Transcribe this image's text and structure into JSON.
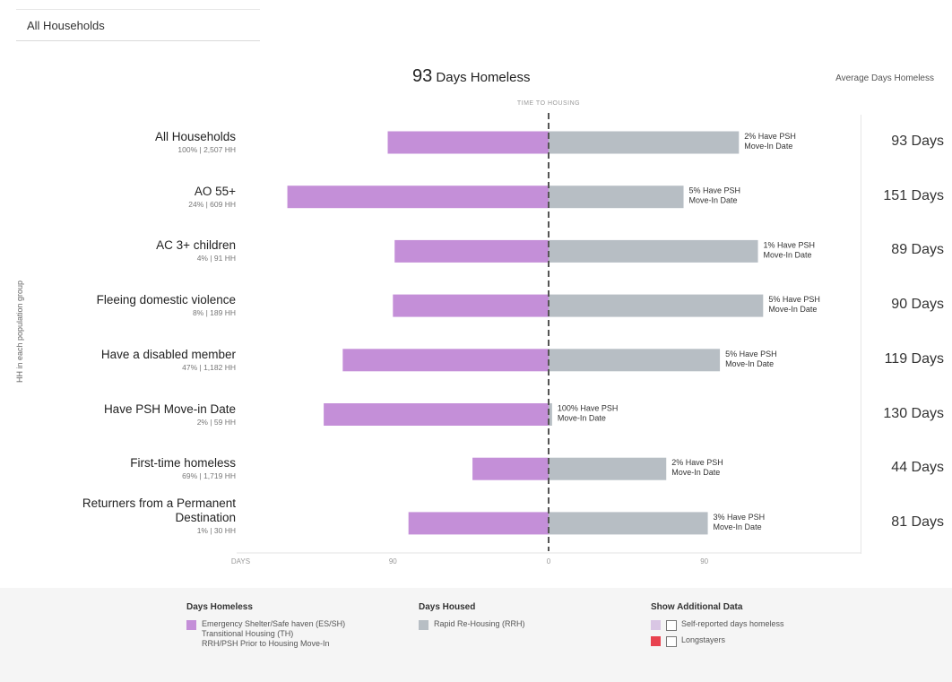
{
  "filter": {
    "value": "All Households"
  },
  "headline": {
    "number": "93",
    "text": "Days Homeless"
  },
  "avg_title": "Average Days Homeless",
  "zero_caption": "TIME TO HOUSING",
  "y_axis_title": "HH in each population group",
  "colors": {
    "homeless": "#c48fd8",
    "housed": "#b7bec4",
    "longstayers": "#e8424f",
    "self_reported": "#d9c6e4"
  },
  "chart_data": {
    "type": "bar",
    "orientation": "horizontal-diverging",
    "categories": [
      "All Households",
      "AO 55+",
      "AC 3+ children",
      "Fleeing domestic violence",
      "Have a disabled member",
      "Have PSH Move-in Date",
      "First-time homeless",
      "Returners from a Permanent Destination"
    ],
    "category_subtitles": [
      "100% | 2,507 HH",
      "24% | 609 HH",
      "4% | 91 HH",
      "8% | 189 HH",
      "47% | 1,182 HH",
      "2% | 59 HH",
      "69% | 1,719 HH",
      "1% | 30 HH"
    ],
    "series": [
      {
        "name": "Days Homeless",
        "values": [
          -93,
          -151,
          -89,
          -90,
          -119,
          -130,
          -44,
          -81
        ]
      },
      {
        "name": "Days Housed",
        "values": [
          110,
          78,
          121,
          124,
          99,
          2,
          68,
          92
        ]
      }
    ],
    "bar_labels": [
      "2% Have PSH Move-In Date",
      "5% Have PSH Move-In Date",
      "1% Have PSH Move-In Date",
      "5% Have PSH Move-In Date",
      "5% Have PSH Move-In Date",
      "100% Have PSH Move-In Date",
      "2% Have PSH Move-In Date",
      "3% Have PSH Move-In Date"
    ],
    "average_days": [
      "93 Days",
      "151 Days",
      "89 Days",
      "90 Days",
      "119 Days",
      "130 Days",
      "44 Days",
      "81 Days"
    ],
    "x_ticks": [
      {
        "value": -178,
        "label": "DAYS"
      },
      {
        "value": -90,
        "label": "90"
      },
      {
        "value": 0,
        "label": "0"
      },
      {
        "value": 90,
        "label": "90"
      }
    ],
    "xlim": [
      -178,
      178
    ],
    "zero_line": "dashed"
  },
  "legend": {
    "homeless": {
      "title": "Days Homeless",
      "lines": [
        "Emergency Shelter/Safe haven (ES/SH)",
        "Transitional Housing (TH)",
        "RRH/PSH Prior to Housing Move-In"
      ]
    },
    "housed": {
      "title": "Days Housed",
      "item": "Rapid Re-Housing (RRH)"
    },
    "additional": {
      "title": "Show Additional Data",
      "items": [
        "Self-reported days homeless",
        "Longstayers"
      ]
    }
  }
}
